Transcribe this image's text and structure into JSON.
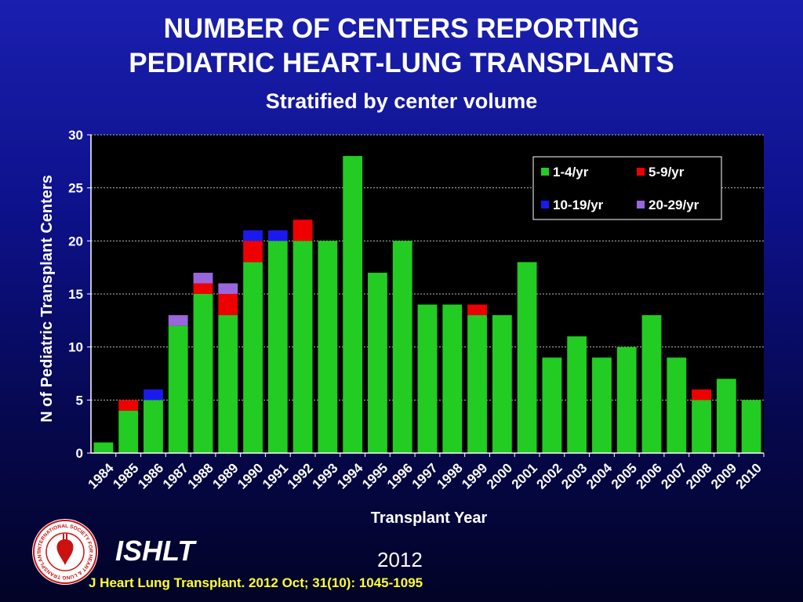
{
  "header": {
    "title_line1": "NUMBER OF CENTERS REPORTING",
    "title_line2": "PEDIATRIC HEART-LUNG TRANSPLANTS",
    "subtitle": "Stratified by center volume"
  },
  "footer": {
    "org": "ISHLT",
    "year": "2012",
    "citation": "J Heart Lung Transplant.  2012 Oct; 31(10): 1045-1095",
    "logo_text": "INTERNATIONAL SOCIETY FOR HEART & LUNG TRANSPLANTATION"
  },
  "chart_data": {
    "type": "bar",
    "stacked": true,
    "title": "NUMBER OF CENTERS REPORTING PEDIATRIC HEART-LUNG TRANSPLANTS",
    "subtitle": "Stratified by center volume",
    "xlabel": "Transplant Year",
    "ylabel": "N of Pediatric Transplant Centers",
    "ylim": [
      0,
      30
    ],
    "yticks": [
      0,
      5,
      10,
      15,
      20,
      25,
      30
    ],
    "grid": true,
    "legend_position": "top-right",
    "plot_background": "#000000",
    "categories": [
      "1984",
      "1985",
      "1986",
      "1987",
      "1988",
      "1989",
      "1990",
      "1991",
      "1992",
      "1993",
      "1994",
      "1995",
      "1996",
      "1997",
      "1998",
      "1999",
      "2000",
      "2001",
      "2002",
      "2003",
      "2004",
      "2005",
      "2006",
      "2007",
      "2008",
      "2009",
      "2010"
    ],
    "series": [
      {
        "name": "1-4/yr",
        "color": "#22cc22",
        "values": [
          1,
          4,
          5,
          12,
          15,
          13,
          18,
          20,
          20,
          20,
          28,
          17,
          20,
          14,
          14,
          13,
          13,
          18,
          9,
          11,
          9,
          10,
          13,
          9,
          5,
          7,
          5
        ]
      },
      {
        "name": "5-9/yr",
        "color": "#ee0000",
        "values": [
          0,
          1,
          0,
          0,
          1,
          2,
          2,
          0,
          2,
          0,
          0,
          0,
          0,
          0,
          0,
          1,
          0,
          0,
          0,
          0,
          0,
          0,
          0,
          0,
          1,
          0,
          0
        ]
      },
      {
        "name": "10-19/yr",
        "color": "#1a1aee",
        "values": [
          0,
          0,
          1,
          0,
          0,
          0,
          1,
          1,
          0,
          0,
          0,
          0,
          0,
          0,
          0,
          0,
          0,
          0,
          0,
          0,
          0,
          0,
          0,
          0,
          0,
          0,
          0
        ]
      },
      {
        "name": "20-29/yr",
        "color": "#9966dd",
        "values": [
          0,
          0,
          0,
          1,
          1,
          1,
          0,
          0,
          0,
          0,
          0,
          0,
          0,
          0,
          0,
          0,
          0,
          0,
          0,
          0,
          0,
          0,
          0,
          0,
          0,
          0,
          0
        ]
      }
    ]
  }
}
